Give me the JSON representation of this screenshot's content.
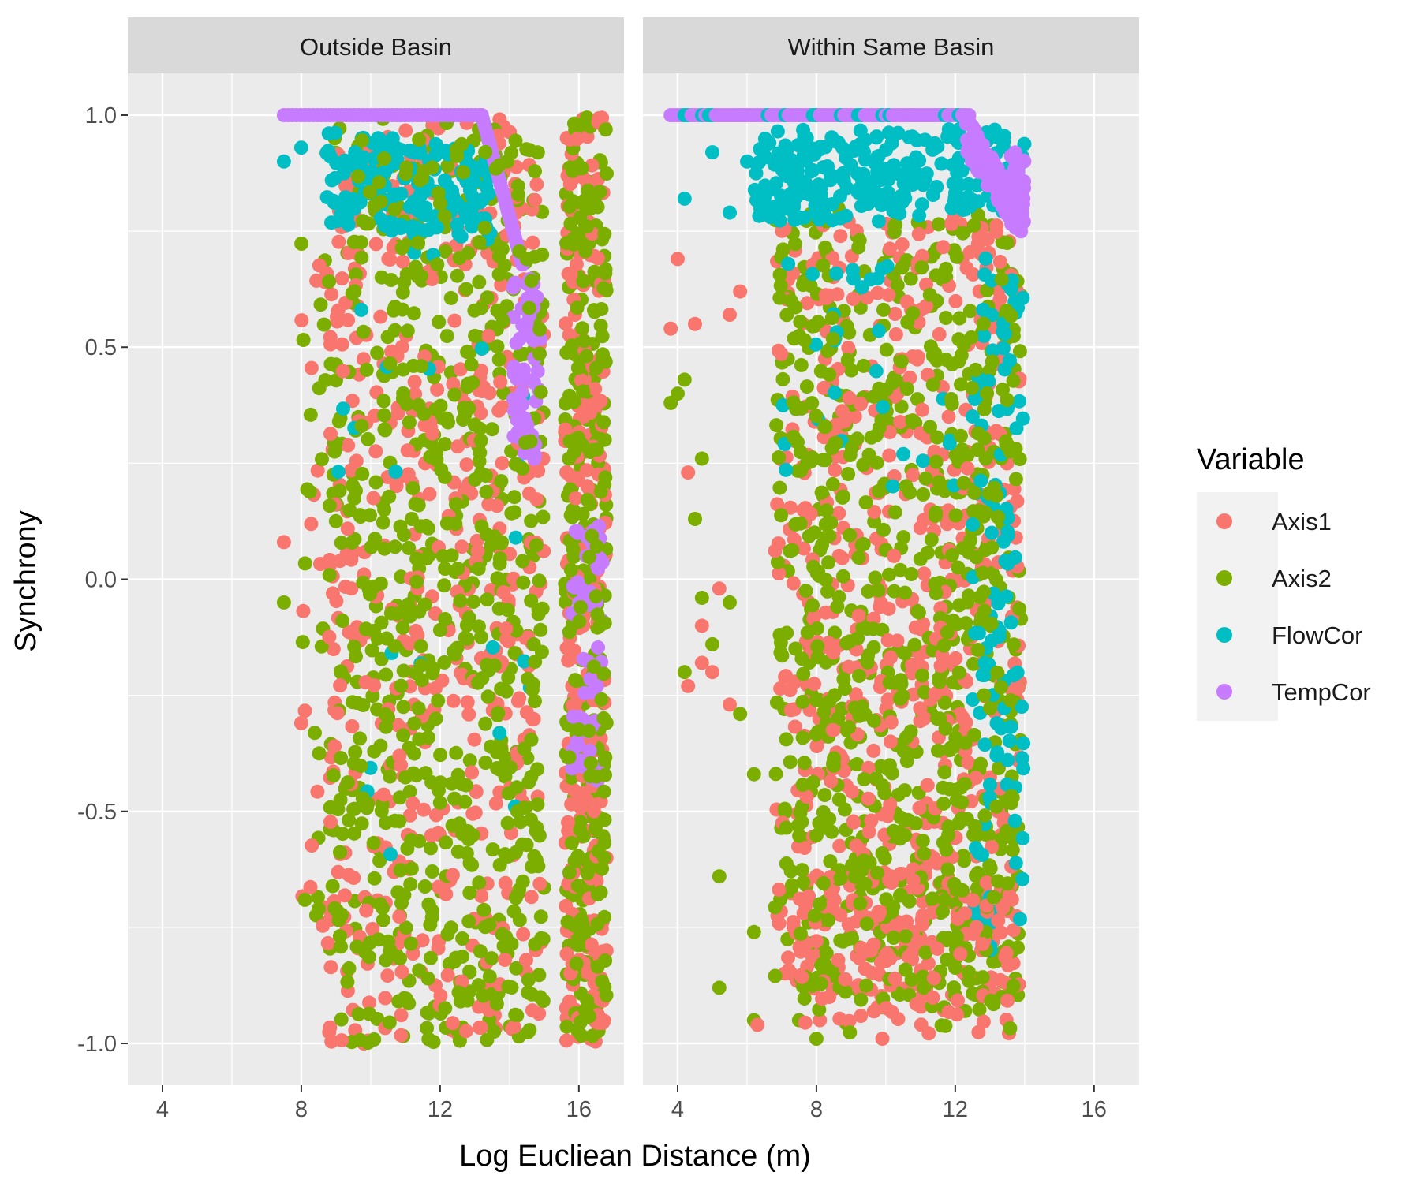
{
  "chart_data": {
    "type": "scatter",
    "title": "",
    "xlabel": "Log Eucliean Distance (m)",
    "ylabel": "Synchrony",
    "xlim": [
      3.0,
      17.3
    ],
    "ylim": [
      -1.09,
      1.09
    ],
    "x_ticks": [
      4,
      8,
      12,
      16
    ],
    "x_tick_labels": [
      "4",
      "8",
      "12",
      "16"
    ],
    "y_ticks": [
      -1.0,
      -0.5,
      0.0,
      0.5,
      1.0
    ],
    "y_tick_labels": [
      "-1.0",
      "-0.5",
      "0.0",
      "0.5",
      "1.0"
    ],
    "grid": true,
    "facets": [
      "Outside Basin",
      "Within Same Basin"
    ],
    "legend": {
      "title": "Variable",
      "position": "right",
      "entries": [
        "Axis1",
        "Axis2",
        "FlowCor",
        "TempCor"
      ]
    },
    "colors": {
      "Axis1": "#F8766D",
      "Axis2": "#7CAE00",
      "FlowCor": "#00BFC4",
      "TempCor": "#C77CFF",
      "panel_bg": "#EBEBEB",
      "strip_bg": "#D9D9D9"
    },
    "series": [
      {
        "name": "Axis1",
        "facet": "Outside Basin",
        "x_range": [
          7.5,
          16.8
        ],
        "y_range": [
          -1.0,
          1.0
        ],
        "sample_points": [
          [
            7.5,
            0.08
          ],
          [
            8.0,
            -0.31
          ],
          [
            8.2,
            -0.36
          ],
          [
            9.8,
            -1.0
          ],
          [
            13.0,
            -1.0
          ],
          [
            12.0,
            0.3
          ]
        ]
      },
      {
        "name": "Axis2",
        "facet": "Outside Basin",
        "x_range": [
          7.5,
          16.8
        ],
        "y_range": [
          -1.0,
          1.0
        ],
        "sample_points": [
          [
            7.5,
            -0.05
          ],
          [
            8.0,
            -0.1
          ],
          [
            8.5,
            -0.71
          ],
          [
            10.5,
            -0.99
          ],
          [
            14.0,
            0.97
          ]
        ]
      },
      {
        "name": "FlowCor",
        "facet": "Outside Basin",
        "x_range": [
          7.5,
          16.8
        ],
        "y_range": [
          -0.65,
          1.0
        ],
        "sample_points": [
          [
            7.5,
            0.9
          ],
          [
            8.0,
            0.93
          ],
          [
            9.0,
            0.97
          ],
          [
            11.0,
            0.9
          ]
        ]
      },
      {
        "name": "TempCor",
        "facet": "Outside Basin",
        "x_range": [
          7.5,
          16.8
        ],
        "y_range": [
          -0.55,
          1.0
        ],
        "sample_points": [
          [
            7.5,
            1.0
          ],
          [
            12.0,
            1.0
          ],
          [
            13.5,
            0.85
          ],
          [
            14.3,
            0.67
          ],
          [
            14.5,
            0.3
          ],
          [
            16.0,
            -0.3
          ]
        ]
      },
      {
        "name": "Axis1",
        "facet": "Within Same Basin",
        "x_range": [
          3.8,
          14.0
        ],
        "y_range": [
          -0.99,
          0.96
        ],
        "sample_points": [
          [
            3.8,
            0.54
          ],
          [
            4.0,
            0.69
          ],
          [
            4.3,
            0.23
          ],
          [
            4.3,
            -0.23
          ],
          [
            4.5,
            0.55
          ],
          [
            8.1,
            -0.95
          ]
        ]
      },
      {
        "name": "Axis2",
        "facet": "Within Same Basin",
        "x_range": [
          3.8,
          14.0
        ],
        "y_range": [
          -0.99,
          0.99
        ],
        "sample_points": [
          [
            3.8,
            0.38
          ],
          [
            4.2,
            0.43
          ],
          [
            4.2,
            -0.2
          ],
          [
            5.2,
            -0.88
          ],
          [
            6.2,
            -0.95
          ],
          [
            13.5,
            0.97
          ]
        ]
      },
      {
        "name": "FlowCor",
        "facet": "Within Same Basin",
        "x_range": [
          3.8,
          14.0
        ],
        "y_range": [
          -0.8,
          1.0
        ],
        "sample_points": [
          [
            3.8,
            1.0
          ],
          [
            4.5,
            1.0
          ],
          [
            5.0,
            0.92
          ],
          [
            5.5,
            0.79
          ],
          [
            13.5,
            -0.8
          ]
        ]
      },
      {
        "name": "TempCor",
        "facet": "Within Same Basin",
        "x_range": [
          4.5,
          14.0
        ],
        "y_range": [
          0.77,
          1.0
        ],
        "sample_points": [
          [
            4.5,
            1.0
          ],
          [
            12.0,
            1.0
          ],
          [
            13.0,
            0.95
          ],
          [
            13.8,
            0.85
          ],
          [
            14.0,
            0.77
          ]
        ]
      }
    ]
  }
}
